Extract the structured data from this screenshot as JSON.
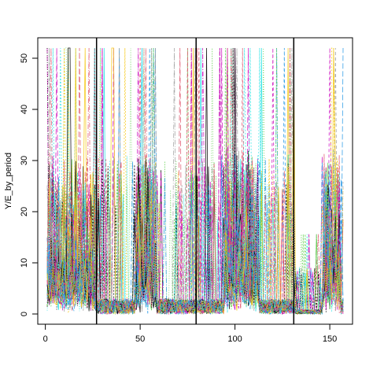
{
  "chart_data": {
    "type": "line",
    "title": "",
    "xlabel": "",
    "ylabel": "Y/E_by_period",
    "xlim": [
      -4,
      162
    ],
    "ylim": [
      -2,
      54
    ],
    "x_ticks": [
      {
        "value": 0,
        "label": "0"
      },
      {
        "value": 50,
        "label": "50"
      },
      {
        "value": 100,
        "label": "100"
      },
      {
        "value": 150,
        "label": "150"
      }
    ],
    "y_ticks": [
      {
        "value": 0,
        "label": "0"
      },
      {
        "value": 10,
        "label": "10"
      },
      {
        "value": 20,
        "label": "20"
      },
      {
        "value": 30,
        "label": "30"
      },
      {
        "value": 40,
        "label": "40"
      },
      {
        "value": 50,
        "label": "50"
      }
    ],
    "period_dividers": [
      27,
      79.5,
      131
    ],
    "series_style": "many overlapping series, multicolored dashed/dotted lines (R matplot style)",
    "series_colors": [
      "#000000",
      "#DF536B",
      "#61D04F",
      "#2297E6",
      "#28E2E5",
      "#CD0BBC",
      "#F5C710",
      "#9E9E9E"
    ],
    "series_count": 60,
    "x_range": [
      1,
      157
    ],
    "peak_value": 52,
    "background_level_max": 26,
    "grid": false,
    "legend": "none"
  }
}
